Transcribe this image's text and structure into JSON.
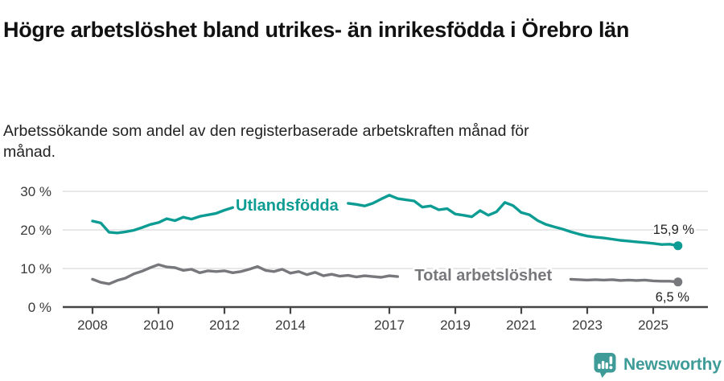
{
  "header": {
    "title": "Högre arbetslöshet bland utrikes- än inrikesfödda i Örebro län",
    "subtitle": "Arbetssökande som andel av den registerbaserade arbetskraften månad för månad."
  },
  "chart_data": {
    "type": "line",
    "unit_suffix": " %",
    "grid": true,
    "legend_position": "inline-labels",
    "xlim": [
      2008,
      2025.75
    ],
    "ylim": [
      0,
      31
    ],
    "x_ticks": {
      "values": [
        2008,
        2010,
        2012,
        2014,
        2017,
        2019,
        2021,
        2023,
        2025
      ],
      "labels": [
        "2008",
        "2010",
        "2012",
        "2014",
        "2017",
        "2019",
        "2021",
        "2023",
        "2025"
      ]
    },
    "y_ticks": {
      "values": [
        0,
        10,
        20,
        30
      ],
      "labels": [
        "0 %",
        "10 %",
        "20 %",
        "30 %"
      ]
    },
    "colors": {
      "grid": "#d9d9d9",
      "axis": "#454545",
      "tick_text": "#3a3a3a",
      "value_label_text": "#222222"
    },
    "x": [
      2008,
      2008.25,
      2008.5,
      2008.75,
      2009,
      2009.25,
      2009.5,
      2009.75,
      2010,
      2010.25,
      2010.5,
      2010.75,
      2011,
      2011.25,
      2011.5,
      2011.75,
      2012,
      2012.25,
      2012.5,
      2012.75,
      2013,
      2013.25,
      2013.5,
      2013.75,
      2014,
      2014.25,
      2014.5,
      2014.75,
      2015,
      2015.25,
      2015.5,
      2015.75,
      2016,
      2016.25,
      2016.5,
      2016.75,
      2017,
      2017.25,
      2017.5,
      2017.75,
      2018,
      2018.25,
      2018.5,
      2018.75,
      2019,
      2019.25,
      2019.5,
      2019.75,
      2020,
      2020.25,
      2020.5,
      2020.75,
      2021,
      2021.25,
      2021.5,
      2021.75,
      2022,
      2022.25,
      2022.5,
      2022.75,
      2023,
      2023.25,
      2023.5,
      2023.75,
      2024,
      2024.25,
      2024.5,
      2024.75,
      2025,
      2025.25,
      2025.5,
      2025.75
    ],
    "series": [
      {
        "name": "Utlandsfödda",
        "color": "#0d9c93",
        "values": [
          22.3,
          21.8,
          19.4,
          19.2,
          19.5,
          19.9,
          20.6,
          21.4,
          21.9,
          22.9,
          22.4,
          23.3,
          22.8,
          23.5,
          23.9,
          24.3,
          25.1,
          25.8,
          null,
          null,
          null,
          null,
          null,
          null,
          null,
          null,
          null,
          null,
          null,
          null,
          null,
          26.9,
          26.6,
          26.2,
          26.9,
          28,
          29,
          28.1,
          27.8,
          27.5,
          25.9,
          26.2,
          25.2,
          25.5,
          24.1,
          23.8,
          23.4,
          25,
          23.8,
          24.7,
          27.1,
          26.3,
          24.5,
          23.9,
          22.4,
          21.4,
          20.8,
          20.2,
          19.5,
          18.9,
          18.4,
          18.1,
          17.9,
          17.6,
          17.3,
          17.1,
          16.9,
          16.7,
          16.5,
          16.2,
          16.3,
          15.9
        ],
        "name_label": {
          "x": 2013.9,
          "y": 26.5
        },
        "end_value_label": {
          "text": "15,9 %",
          "x": 2025.62,
          "y": 20.2
        }
      },
      {
        "name": "Total arbetslöshet",
        "color": "#77787b",
        "values": [
          7.2,
          6.4,
          6,
          6.9,
          7.5,
          8.6,
          9.3,
          10.2,
          11,
          10.4,
          10.2,
          9.5,
          9.8,
          8.9,
          9.4,
          9.2,
          9.4,
          8.9,
          9.2,
          9.8,
          10.5,
          9.5,
          9.2,
          9.8,
          8.8,
          9.2,
          8.4,
          9,
          8.1,
          8.5,
          8,
          8.2,
          7.8,
          8.1,
          7.9,
          7.7,
          8.1,
          7.9,
          null,
          null,
          null,
          null,
          null,
          null,
          null,
          null,
          null,
          null,
          null,
          null,
          null,
          null,
          null,
          null,
          null,
          null,
          null,
          null,
          7.2,
          7.1,
          7,
          7.1,
          7,
          7.1,
          6.9,
          7,
          6.9,
          7,
          6.8,
          6.7,
          6.7,
          6.5
        ],
        "name_label": {
          "x": 2019.85,
          "y": 8.3
        },
        "end_value_label": {
          "text": "6,5 %",
          "x": 2025.58,
          "y": 2.7
        }
      }
    ]
  },
  "footer": {
    "brand": "Newsworthy",
    "brand_color": "#3e9b98",
    "logo_icon": "bar-chart-speech-bubble-icon"
  }
}
